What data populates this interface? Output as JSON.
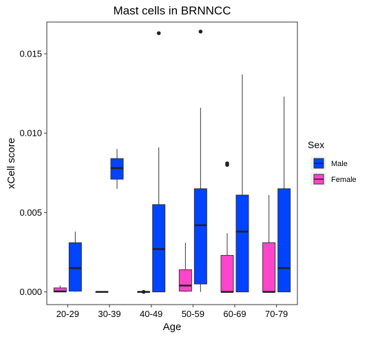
{
  "chart_data": {
    "type": "boxplot",
    "title": "Mast cells in BRNNCC",
    "xlabel": "Age",
    "ylabel": "xCell score",
    "ylim": [
      -0.0008,
      0.017
    ],
    "y_ticks": [
      "0.000",
      "0.005",
      "0.010",
      "0.015"
    ],
    "y_tick_values": [
      0,
      0.005,
      0.01,
      0.015
    ],
    "categories": [
      "20-29",
      "30-39",
      "40-49",
      "50-59",
      "60-69",
      "70-79"
    ],
    "grid": false,
    "legend": {
      "title": "Sex",
      "position": "right",
      "entries": [
        {
          "label": "Male",
          "color": "#0044FF"
        },
        {
          "label": "Female",
          "color": "#FF44CC"
        }
      ]
    },
    "series": [
      {
        "name": "Female",
        "color": "#FF44CC",
        "boxes": [
          {
            "category": "20-29",
            "min": 0.0,
            "q1": 0.0,
            "median": 3e-05,
            "q3": 0.00025,
            "max": 0.0004,
            "outliers": []
          },
          {
            "category": "30-39",
            "min": 0.0,
            "q1": 0.0,
            "median": 0.0,
            "q3": 0.0,
            "max": 0.0,
            "outliers": []
          },
          {
            "category": "40-49",
            "min": 0.0,
            "q1": 0.0,
            "median": 0.0,
            "q3": 0.0,
            "max": 0.0,
            "outliers": [
              0.0
            ]
          },
          {
            "category": "50-59",
            "min": 0.0,
            "q1": 5e-05,
            "median": 0.0004,
            "q3": 0.0014,
            "max": 0.0031,
            "outliers": []
          },
          {
            "category": "60-69",
            "min": 0.0,
            "q1": 0.0,
            "median": 0.0,
            "q3": 0.0023,
            "max": 0.0037,
            "outliers": [
              0.008,
              0.0081
            ]
          },
          {
            "category": "70-79",
            "min": 0.0,
            "q1": 0.0,
            "median": 0.0,
            "q3": 0.0031,
            "max": 0.0061,
            "outliers": []
          }
        ]
      },
      {
        "name": "Male",
        "color": "#0044FF",
        "boxes": [
          {
            "category": "20-29",
            "min": 0.0,
            "q1": 5e-05,
            "median": 0.0015,
            "q3": 0.0031,
            "max": 0.0038,
            "outliers": []
          },
          {
            "category": "30-39",
            "min": 0.0065,
            "q1": 0.0071,
            "median": 0.0078,
            "q3": 0.0084,
            "max": 0.009,
            "outliers": []
          },
          {
            "category": "40-49",
            "min": 0.0,
            "q1": 0.0,
            "median": 0.0027,
            "q3": 0.0055,
            "max": 0.0091,
            "outliers": [
              0.0163
            ]
          },
          {
            "category": "50-59",
            "min": 0.0,
            "q1": 0.0005,
            "median": 0.0042,
            "q3": 0.0065,
            "max": 0.0116,
            "outliers": [
              0.0164
            ]
          },
          {
            "category": "60-69",
            "min": 0.0,
            "q1": 0.0,
            "median": 0.0038,
            "q3": 0.0061,
            "max": 0.0137,
            "outliers": []
          },
          {
            "category": "70-79",
            "min": 0.0,
            "q1": 0.0,
            "median": 0.0015,
            "q3": 0.0065,
            "max": 0.0123,
            "outliers": []
          }
        ]
      }
    ]
  }
}
